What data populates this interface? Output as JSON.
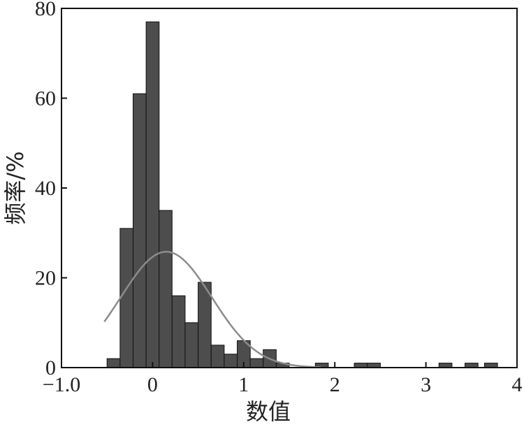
{
  "chart_data": {
    "type": "bar",
    "title": "",
    "xlabel": "数值",
    "ylabel": "频率/%",
    "xlim": [
      -1.0,
      4
    ],
    "ylim": [
      0,
      80
    ],
    "x_ticks": [
      "−1.0",
      "0",
      "1",
      "2",
      "3",
      "4"
    ],
    "x_tick_values": [
      -1.0,
      0,
      1,
      2,
      3,
      4
    ],
    "y_ticks": [
      "0",
      "20",
      "40",
      "60",
      "80"
    ],
    "y_tick_values": [
      0,
      20,
      40,
      60,
      80
    ],
    "bin_width": 0.143,
    "bins": [
      {
        "left": -0.5,
        "value": 2
      },
      {
        "left": -0.357,
        "value": 31
      },
      {
        "left": -0.214,
        "value": 61
      },
      {
        "left": -0.071,
        "value": 77
      },
      {
        "left": 0.071,
        "value": 35
      },
      {
        "left": 0.214,
        "value": 16
      },
      {
        "left": 0.357,
        "value": 10
      },
      {
        "left": 0.5,
        "value": 19
      },
      {
        "left": 0.643,
        "value": 5
      },
      {
        "left": 0.786,
        "value": 3
      },
      {
        "left": 0.929,
        "value": 6
      },
      {
        "left": 1.071,
        "value": 2
      },
      {
        "left": 1.214,
        "value": 4
      },
      {
        "left": 1.357,
        "value": 1
      },
      {
        "left": 1.5,
        "value": 0
      },
      {
        "left": 1.643,
        "value": 0
      },
      {
        "left": 1.786,
        "value": 1
      },
      {
        "left": 1.929,
        "value": 0
      },
      {
        "left": 2.071,
        "value": 0
      },
      {
        "left": 2.214,
        "value": 1
      },
      {
        "left": 2.357,
        "value": 1
      },
      {
        "left": 3.143,
        "value": 1
      },
      {
        "left": 3.429,
        "value": 1
      },
      {
        "left": 3.643,
        "value": 1
      }
    ],
    "fit_curve": {
      "type": "normal",
      "mean": 0.15,
      "sd": 0.5,
      "peak": 25.8,
      "x_range": [
        -0.53,
        1.85
      ]
    },
    "grid": false,
    "legend": "none"
  },
  "colors": {
    "bar_fill": "#4d4d4d",
    "bar_edge": "#111111",
    "curve": "#8c8c8c",
    "axis": "#111111"
  }
}
